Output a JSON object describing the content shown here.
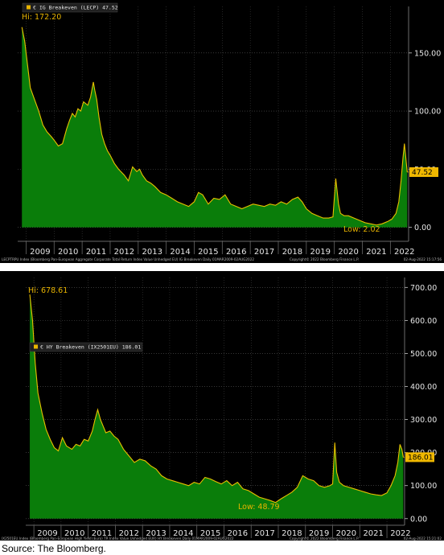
{
  "footer_source": "Source: The Bloomberg.",
  "chart_data": [
    {
      "type": "area",
      "legend": "€ IG Breakeven (LECP) 47.52",
      "hi_label": "Hi: 172.20",
      "low_label": "Low: 2.02",
      "last_value_label": "47.52",
      "footer_left": "LECPTRPU Index (Bloomberg Pan-European Aggregate Corporate Total Return Index Value Unhedged EU) IG Breakeven Daily 01MAR2009-02AUG2022",
      "footer_copyright": "Copyright© 2022 Bloomberg Finance L.P.",
      "footer_date": "02-Aug-2022 15:17:56",
      "x_ticks": [
        "2009",
        "2010",
        "2011",
        "2012",
        "2013",
        "2014",
        "2015",
        "2016",
        "2017",
        "2018",
        "2019",
        "2020",
        "2021",
        "2022"
      ],
      "y_ticks": [
        "150.00",
        "100.00",
        "50.00",
        "0.00"
      ],
      "y_tick_values": [
        150,
        100,
        50,
        0
      ],
      "ylim": [
        -12,
        190
      ],
      "xlim": [
        2008.7,
        2022.65
      ],
      "colors": {
        "fill": "#0a7d0a",
        "line": "#e8c000",
        "label": "#e8b400"
      },
      "x": [
        2008.85,
        2008.95,
        2009.05,
        2009.15,
        2009.3,
        2009.45,
        2009.6,
        2009.75,
        2009.9,
        2010.0,
        2010.15,
        2010.3,
        2010.45,
        2010.55,
        2010.65,
        2010.75,
        2010.85,
        2010.95,
        2011.05,
        2011.2,
        2011.3,
        2011.4,
        2011.45,
        2011.52,
        2011.6,
        2011.7,
        2011.8,
        2011.9,
        2012.0,
        2012.15,
        2012.3,
        2012.5,
        2012.65,
        2012.8,
        2012.95,
        2013.05,
        2013.15,
        2013.3,
        2013.45,
        2013.6,
        2013.8,
        2014.0,
        2014.2,
        2014.4,
        2014.6,
        2014.8,
        2015.0,
        2015.15,
        2015.3,
        2015.5,
        2015.7,
        2015.9,
        2016.1,
        2016.3,
        2016.5,
        2016.7,
        2016.9,
        2017.1,
        2017.3,
        2017.5,
        2017.7,
        2017.9,
        2018.1,
        2018.3,
        2018.5,
        2018.7,
        2018.85,
        2019.0,
        2019.2,
        2019.4,
        2019.6,
        2019.8,
        2019.95,
        2020.05,
        2020.15,
        2020.22,
        2020.35,
        2020.5,
        2020.7,
        2020.9,
        2021.1,
        2021.3,
        2021.5,
        2021.7,
        2021.9,
        2022.05,
        2022.2,
        2022.3,
        2022.38,
        2022.45,
        2022.5,
        2022.55,
        2022.6
      ],
      "values": [
        172.2,
        160,
        140,
        120,
        110,
        100,
        88,
        82,
        78,
        75,
        70,
        72,
        85,
        92,
        98,
        95,
        102,
        100,
        108,
        105,
        112,
        125,
        118,
        110,
        95,
        80,
        72,
        66,
        62,
        55,
        50,
        45,
        40,
        52,
        48,
        50,
        45,
        40,
        38,
        35,
        30,
        28,
        25,
        22,
        20,
        18,
        22,
        30,
        28,
        20,
        25,
        24,
        28,
        20,
        18,
        16,
        18,
        20,
        19,
        18,
        20,
        19,
        22,
        20,
        24,
        26,
        22,
        16,
        12,
        10,
        8,
        8,
        9,
        42,
        20,
        12,
        10,
        10,
        8,
        6,
        4,
        3,
        2.02,
        3,
        5,
        7,
        12,
        22,
        40,
        60,
        72,
        60,
        47.52
      ]
    },
    {
      "type": "area",
      "legend": "€ HY Breakeven (IX2501EU) 186.01",
      "hi_label": "Hi: 678.61",
      "low_label": "Low: 48.79",
      "last_value_label": "186.01",
      "footer_left": "IX2501EU Index (Bloomberg Pan-European High Yield (Euro) TR Index Value Unhedged EUR) HY Breakeven Daily 01MAR2009-02AUG2022",
      "footer_copyright": "Copyright© 2022 Bloomberg Finance L.P.",
      "footer_date": "02-Aug-2022 15:21:02",
      "x_ticks": [
        "2009",
        "2010",
        "2011",
        "2012",
        "2013",
        "2014",
        "2015",
        "2016",
        "2017",
        "2018",
        "2019",
        "2020",
        "2021",
        "2022"
      ],
      "y_ticks": [
        "700.00",
        "600.00",
        "500.00",
        "400.00",
        "300.00",
        "200.00",
        "100.00",
        "0.00"
      ],
      "y_tick_values": [
        700,
        600,
        500,
        400,
        300,
        200,
        100,
        0
      ],
      "ylim": [
        -20,
        730
      ],
      "xlim": [
        2008.7,
        2022.65
      ],
      "colors": {
        "fill": "#0a7d0a",
        "line": "#e8c000",
        "label": "#e8b400"
      },
      "x": [
        2008.85,
        2008.95,
        2009.05,
        2009.15,
        2009.3,
        2009.45,
        2009.6,
        2009.75,
        2009.9,
        2010.05,
        2010.2,
        2010.4,
        2010.55,
        2010.7,
        2010.85,
        2011.0,
        2011.15,
        2011.25,
        2011.35,
        2011.45,
        2011.55,
        2011.65,
        2011.8,
        2011.95,
        2012.1,
        2012.3,
        2012.5,
        2012.7,
        2012.9,
        2013.1,
        2013.3,
        2013.5,
        2013.7,
        2013.9,
        2014.1,
        2014.3,
        2014.5,
        2014.7,
        2014.9,
        2015.1,
        2015.3,
        2015.5,
        2015.7,
        2015.9,
        2016.1,
        2016.3,
        2016.5,
        2016.7,
        2016.9,
        2017.1,
        2017.3,
        2017.5,
        2017.7,
        2017.9,
        2018.1,
        2018.3,
        2018.5,
        2018.7,
        2018.9,
        2019.1,
        2019.3,
        2019.5,
        2019.7,
        2019.9,
        2020.0,
        2020.08,
        2020.15,
        2020.25,
        2020.4,
        2020.6,
        2020.8,
        2021.0,
        2021.2,
        2021.4,
        2021.6,
        2021.8,
        2022.0,
        2022.15,
        2022.3,
        2022.4,
        2022.48,
        2022.55,
        2022.6
      ],
      "values": [
        678.61,
        600,
        470,
        380,
        320,
        270,
        240,
        215,
        205,
        245,
        220,
        210,
        225,
        220,
        240,
        235,
        265,
        300,
        330,
        300,
        280,
        260,
        265,
        250,
        240,
        210,
        190,
        170,
        180,
        175,
        160,
        150,
        130,
        120,
        115,
        110,
        105,
        100,
        110,
        105,
        125,
        120,
        112,
        105,
        115,
        100,
        110,
        90,
        85,
        75,
        65,
        60,
        55,
        48.79,
        60,
        70,
        80,
        95,
        130,
        120,
        115,
        100,
        95,
        100,
        105,
        230,
        140,
        110,
        100,
        95,
        90,
        85,
        80,
        75,
        72,
        70,
        78,
        100,
        130,
        170,
        225,
        210,
        186.01
      ]
    }
  ]
}
